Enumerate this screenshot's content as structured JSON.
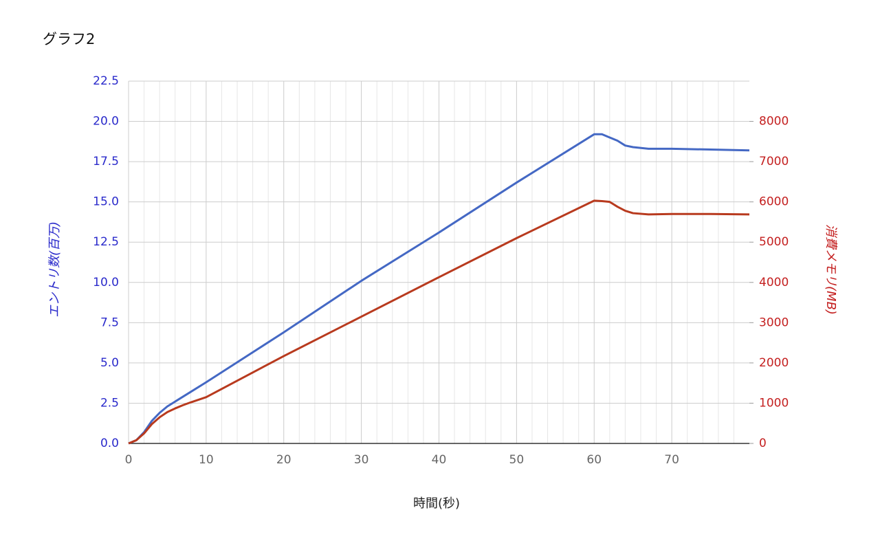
{
  "chart_data": {
    "type": "line",
    "title": "グラフ2",
    "xlabel": "時間(秒)",
    "ylabel": "エントリ数(百万)",
    "y2label": "消費メモリ(MB)",
    "x": [
      0,
      1,
      2,
      3,
      4,
      5,
      6,
      7,
      8,
      10,
      20,
      30,
      40,
      50,
      60,
      61,
      62,
      63,
      64,
      65,
      67,
      70,
      75,
      80
    ],
    "xlim": [
      0,
      80
    ],
    "xticks": [
      0,
      10,
      20,
      30,
      40,
      50,
      60,
      70
    ],
    "ylim": [
      0,
      22.5
    ],
    "yticks": [
      {
        "value": 0,
        "label": "0.0"
      },
      2.5,
      {
        "value": 5,
        "label": "5.0"
      },
      7.5,
      {
        "value": 10,
        "label": "10.0"
      },
      12.5,
      {
        "value": 15,
        "label": "15.0"
      },
      17.5,
      {
        "value": 20,
        "label": "20.0"
      },
      22.5
    ],
    "y2lim": [
      0,
      9000
    ],
    "y2ticks": [
      0,
      1000,
      2000,
      3000,
      4000,
      5000,
      6000,
      7000,
      8000
    ],
    "grid": true,
    "series": [
      {
        "name": "エントリ数",
        "color": "#4468c4",
        "axis": "y",
        "values": [
          0,
          0.2,
          0.7,
          1.4,
          1.9,
          2.3,
          2.6,
          2.9,
          3.2,
          3.8,
          6.9,
          10.1,
          13.1,
          16.2,
          19.2,
          19.2,
          19.0,
          18.8,
          18.5,
          18.4,
          18.3,
          18.3,
          18.25,
          18.2
        ]
      },
      {
        "name": "消費メモリ",
        "color": "#b83a1e",
        "axis": "y2",
        "values": [
          0,
          80,
          250,
          480,
          650,
          780,
          870,
          950,
          1020,
          1150,
          2170,
          3150,
          4130,
          5100,
          6030,
          6020,
          6000,
          5880,
          5780,
          5720,
          5690,
          5700,
          5700,
          5690
        ]
      }
    ]
  }
}
